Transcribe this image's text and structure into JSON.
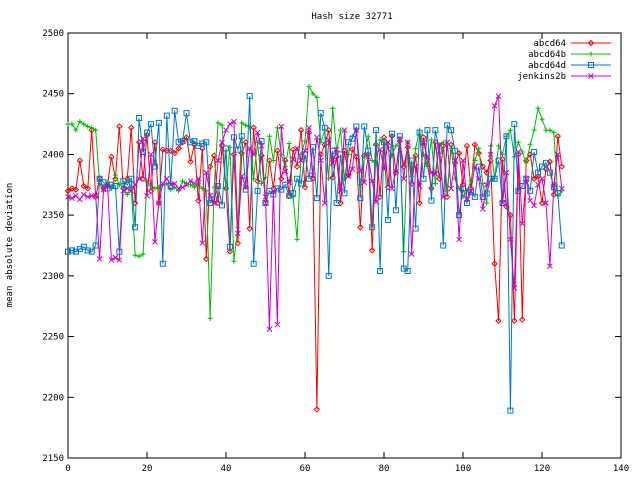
{
  "chart_data": {
    "type": "line",
    "title": "Hash size 32771",
    "xlabel": "",
    "ylabel": "mean absolute deviation",
    "xlim": [
      0,
      140
    ],
    "ylim": [
      2150,
      2500
    ],
    "x_ticks": [
      0,
      20,
      40,
      60,
      80,
      100,
      120,
      140
    ],
    "y_ticks": [
      2150,
      2200,
      2250,
      2300,
      2350,
      2400,
      2450,
      2500
    ],
    "grid": false,
    "legend": "top-right",
    "series": [
      {
        "name": "abcd64",
        "color": "#ff0000",
        "marker": "diamond",
        "x": [
          0,
          1,
          2,
          3,
          4,
          5,
          6,
          7,
          8,
          9,
          10,
          11,
          12,
          13,
          14,
          15,
          16,
          17,
          18,
          19,
          20,
          21,
          22,
          23,
          24,
          25,
          26,
          27,
          28,
          29,
          30,
          31,
          32,
          33,
          34,
          35,
          36,
          37,
          38,
          39,
          40,
          41,
          42,
          43,
          44,
          45,
          46,
          47,
          48,
          49,
          50,
          51,
          52,
          53,
          54,
          55,
          56,
          57,
          58,
          59,
          60,
          61,
          62,
          63,
          64,
          65,
          66,
          67,
          68,
          69,
          70,
          71,
          72,
          73,
          74,
          75,
          76,
          77,
          78,
          79,
          80,
          81,
          82,
          83,
          84,
          85,
          86,
          87,
          88,
          89,
          90,
          91,
          92,
          93,
          94,
          95,
          96,
          97,
          98,
          99,
          100,
          101,
          102,
          103,
          104,
          105,
          106,
          107,
          108,
          109,
          110,
          111,
          112,
          113,
          114,
          115,
          116,
          117,
          118,
          119,
          120,
          121,
          122,
          123,
          124,
          125
        ],
        "values": [
          2370,
          2372,
          2371,
          2395,
          2374,
          2372,
          2420,
          2365,
          2380,
          2372,
          2375,
          2398,
          2380,
          2423,
          2372,
          2380,
          2422,
          2360,
          2410,
          2380,
          2416,
          2370,
          2410,
          2360,
          2404,
          2403,
          2403,
          2401,
          2405,
          2410,
          2414,
          2394,
          2408,
          2362,
          2405,
          2314,
          2390,
          2399,
          2360,
          2407,
          2372,
          2320,
          2400,
          2327,
          2401,
          2410,
          2339,
          2422,
          2378,
          2399,
          2360,
          2395,
          2372,
          2403,
          2380,
          2395,
          2366,
          2404,
          2390,
          2420,
          2373,
          2418,
          2380,
          2190,
          2400,
          2408,
          2420,
          2381,
          2398,
          2360,
          2403,
          2383,
          2404,
          2398,
          2340,
          2399,
          2400,
          2321,
          2408,
          2365,
          2414,
          2373,
          2415,
          2385,
          2411,
          2390,
          2406,
          2376,
          2399,
          2360,
          2414,
          2392,
          2372,
          2410,
          2380,
          2407,
          2365,
          2408,
          2393,
          2401,
          2375,
          2407,
          2372,
          2408,
          2401,
          2390,
          2385,
          2395,
          2310,
          2263,
          2396,
          2357,
          2350,
          2263,
          2400,
          2264,
          2395,
          2400,
          2380,
          2382,
          2360,
          2388,
          2394,
          2367,
          2415,
          2390
        ]
      },
      {
        "name": "abcd64b",
        "color": "#00bb00",
        "marker": "plus",
        "x": [
          0,
          1,
          2,
          3,
          4,
          5,
          6,
          7,
          8,
          9,
          10,
          11,
          12,
          13,
          14,
          15,
          16,
          17,
          18,
          19,
          20,
          21,
          22,
          23,
          24,
          25,
          26,
          27,
          28,
          29,
          30,
          31,
          32,
          33,
          34,
          35,
          36,
          37,
          38,
          39,
          40,
          41,
          42,
          43,
          44,
          45,
          46,
          47,
          48,
          49,
          50,
          51,
          52,
          53,
          54,
          55,
          56,
          57,
          58,
          59,
          60,
          61,
          62,
          63,
          64,
          65,
          66,
          67,
          68,
          69,
          70,
          71,
          72,
          73,
          74,
          75,
          76,
          77,
          78,
          79,
          80,
          81,
          82,
          83,
          84,
          85,
          86,
          87,
          88,
          89,
          90,
          91,
          92,
          93,
          94,
          95,
          96,
          97,
          98,
          99,
          100,
          101,
          102,
          103,
          104,
          105,
          106,
          107,
          108,
          109,
          110,
          111,
          112,
          113,
          114,
          115,
          116,
          117,
          118,
          119,
          120,
          121,
          122,
          123,
          124,
          125
        ],
        "values": [
          2425,
          2425,
          2420,
          2427,
          2425,
          2423,
          2422,
          2420,
          2376,
          2370,
          2377,
          2372,
          2383,
          2375,
          2373,
          2367,
          2374,
          2317,
          2316,
          2318,
          2378,
          2374,
          2372,
          2373,
          2375,
          2376,
          2371,
          2373,
          2370,
          2378,
          2376,
          2375,
          2373,
          2376,
          2372,
          2370,
          2265,
          2373,
          2426,
          2424,
          2372,
          2406,
          2312,
          2340,
          2426,
          2424,
          2423,
          2380,
          2410,
          2376,
          2381,
          2415,
          2395,
          2422,
          2400,
          2390,
          2409,
          2365,
          2330,
          2400,
          2411,
          2456,
          2450,
          2447,
          2410,
          2420,
          2380,
          2438,
          2403,
          2420,
          2380,
          2400,
          2415,
          2420,
          2375,
          2398,
          2415,
          2395,
          2392,
          2412,
          2410,
          2406,
          2399,
          2407,
          2411,
          2320,
          2410,
          2382,
          2405,
          2420,
          2400,
          2390,
          2412,
          2376,
          2408,
          2410,
          2370,
          2405,
          2380,
          2372,
          2365,
          2370,
          2378,
          2395,
          2405,
          2376,
          2360,
          2407,
          2380,
          2407,
          2400,
          2415,
          2420,
          2398,
          2410,
          2402,
          2393,
          2408,
          2420,
          2438,
          2429,
          2420,
          2420,
          2418,
          2366,
          2370
        ]
      },
      {
        "name": "abcd64d",
        "color": "#0077cc",
        "marker": "square",
        "x": [
          0,
          1,
          2,
          3,
          4,
          5,
          6,
          7,
          8,
          9,
          10,
          11,
          12,
          13,
          14,
          15,
          16,
          17,
          18,
          19,
          20,
          21,
          22,
          23,
          24,
          25,
          26,
          27,
          28,
          29,
          30,
          31,
          32,
          33,
          34,
          35,
          36,
          37,
          38,
          39,
          40,
          41,
          42,
          43,
          44,
          45,
          46,
          47,
          48,
          49,
          50,
          51,
          52,
          53,
          54,
          55,
          56,
          57,
          58,
          59,
          60,
          61,
          62,
          63,
          64,
          65,
          66,
          67,
          68,
          69,
          70,
          71,
          72,
          73,
          74,
          75,
          76,
          77,
          78,
          79,
          80,
          81,
          82,
          83,
          84,
          85,
          86,
          87,
          88,
          89,
          90,
          91,
          92,
          93,
          94,
          95,
          96,
          97,
          98,
          99,
          100,
          101,
          102,
          103,
          104,
          105,
          106,
          107,
          108,
          109,
          110,
          111,
          112,
          113,
          114,
          115,
          116,
          117,
          118,
          119,
          120,
          121,
          122,
          123,
          124,
          125
        ],
        "values": [
          2320,
          2321,
          2320,
          2322,
          2324,
          2321,
          2320,
          2325,
          2380,
          2377,
          2372,
          2375,
          2374,
          2320,
          2378,
          2375,
          2380,
          2340,
          2430,
          2402,
          2418,
          2425,
          2390,
          2426,
          2310,
          2432,
          2374,
          2436,
          2410,
          2411,
          2434,
          2410,
          2411,
          2407,
          2409,
          2410,
          2360,
          2363,
          2374,
          2358,
          2405,
          2324,
          2414,
          2404,
          2415,
          2371,
          2448,
          2310,
          2370,
          2411,
          2360,
          2370,
          2367,
          2372,
          2371,
          2375,
          2366,
          2368,
          2380,
          2376,
          2400,
          2380,
          2406,
          2364,
          2434,
          2422,
          2300,
          2403,
          2360,
          2400,
          2368,
          2410,
          2413,
          2423,
          2364,
          2423,
          2403,
          2340,
          2420,
          2304,
          2410,
          2346,
          2417,
          2354,
          2415,
          2306,
          2304,
          2395,
          2339,
          2418,
          2380,
          2420,
          2362,
          2420,
          2403,
          2325,
          2424,
          2420,
          2403,
          2350,
          2372,
          2360,
          2369,
          2365,
          2390,
          2365,
          2368,
          2380,
          2380,
          2395,
          2360,
          2415,
          2189,
          2425,
          2370,
          2374,
          2380,
          2370,
          2402,
          2385,
          2390,
          2393,
          2385,
          2373,
          2368,
          2325
        ]
      },
      {
        "name": "jenkins2b",
        "color": "#cc00cc",
        "marker": "cross",
        "x": [
          0,
          1,
          2,
          3,
          4,
          5,
          6,
          7,
          8,
          9,
          10,
          11,
          12,
          13,
          14,
          15,
          16,
          17,
          18,
          19,
          20,
          21,
          22,
          23,
          24,
          25,
          26,
          27,
          28,
          29,
          30,
          31,
          32,
          33,
          34,
          35,
          36,
          37,
          38,
          39,
          40,
          41,
          42,
          43,
          44,
          45,
          46,
          47,
          48,
          49,
          50,
          51,
          52,
          53,
          54,
          55,
          56,
          57,
          58,
          59,
          60,
          61,
          62,
          63,
          64,
          65,
          66,
          67,
          68,
          69,
          70,
          71,
          72,
          73,
          74,
          75,
          76,
          77,
          78,
          79,
          80,
          81,
          82,
          83,
          84,
          85,
          86,
          87,
          88,
          89,
          90,
          91,
          92,
          93,
          94,
          95,
          96,
          97,
          98,
          99,
          100,
          101,
          102,
          103,
          104,
          105,
          106,
          107,
          108,
          109,
          110,
          111,
          112,
          113,
          114,
          115,
          116,
          117,
          118,
          119,
          120,
          121,
          122,
          123,
          124,
          125
        ],
        "values": [
          2365,
          2364,
          2366,
          2363,
          2367,
          2365,
          2366,
          2366,
          2314,
          2371,
          2375,
          2313,
          2315,
          2313,
          2370,
          2372,
          2370,
          2375,
          2380,
          2413,
          2366,
          2400,
          2328,
          2360,
          2376,
          2380,
          2375,
          2376,
          2372,
          2373,
          2375,
          2378,
          2376,
          2380,
          2327,
          2385,
          2366,
          2360,
          2395,
          2410,
          2420,
          2425,
          2427,
          2335,
          2382,
          2373,
          2405,
          2400,
          2418,
          2407,
          2365,
          2256,
          2370,
          2260,
          2423,
          2386,
          2377,
          2396,
          2405,
          2395,
          2403,
          2422,
          2383,
          2414,
          2395,
          2360,
          2412,
          2393,
          2404,
          2370,
          2420,
          2382,
          2388,
          2420,
          2387,
          2377,
          2398,
          2378,
          2361,
          2404,
          2388,
          2410,
          2372,
          2386,
          2413,
          2380,
          2410,
          2318,
          2390,
          2374,
          2410,
          2398,
          2385,
          2384,
          2408,
          2365,
          2410,
          2372,
          2395,
          2330,
          2395,
          2363,
          2370,
          2390,
          2380,
          2355,
          2375,
          2400,
          2440,
          2448,
          2360,
          2385,
          2330,
          2290,
          2402,
          2343,
          2380,
          2362,
          2358,
          2375,
          2380,
          2360,
          2308,
          2375,
          2400,
          2372
        ]
      }
    ]
  }
}
